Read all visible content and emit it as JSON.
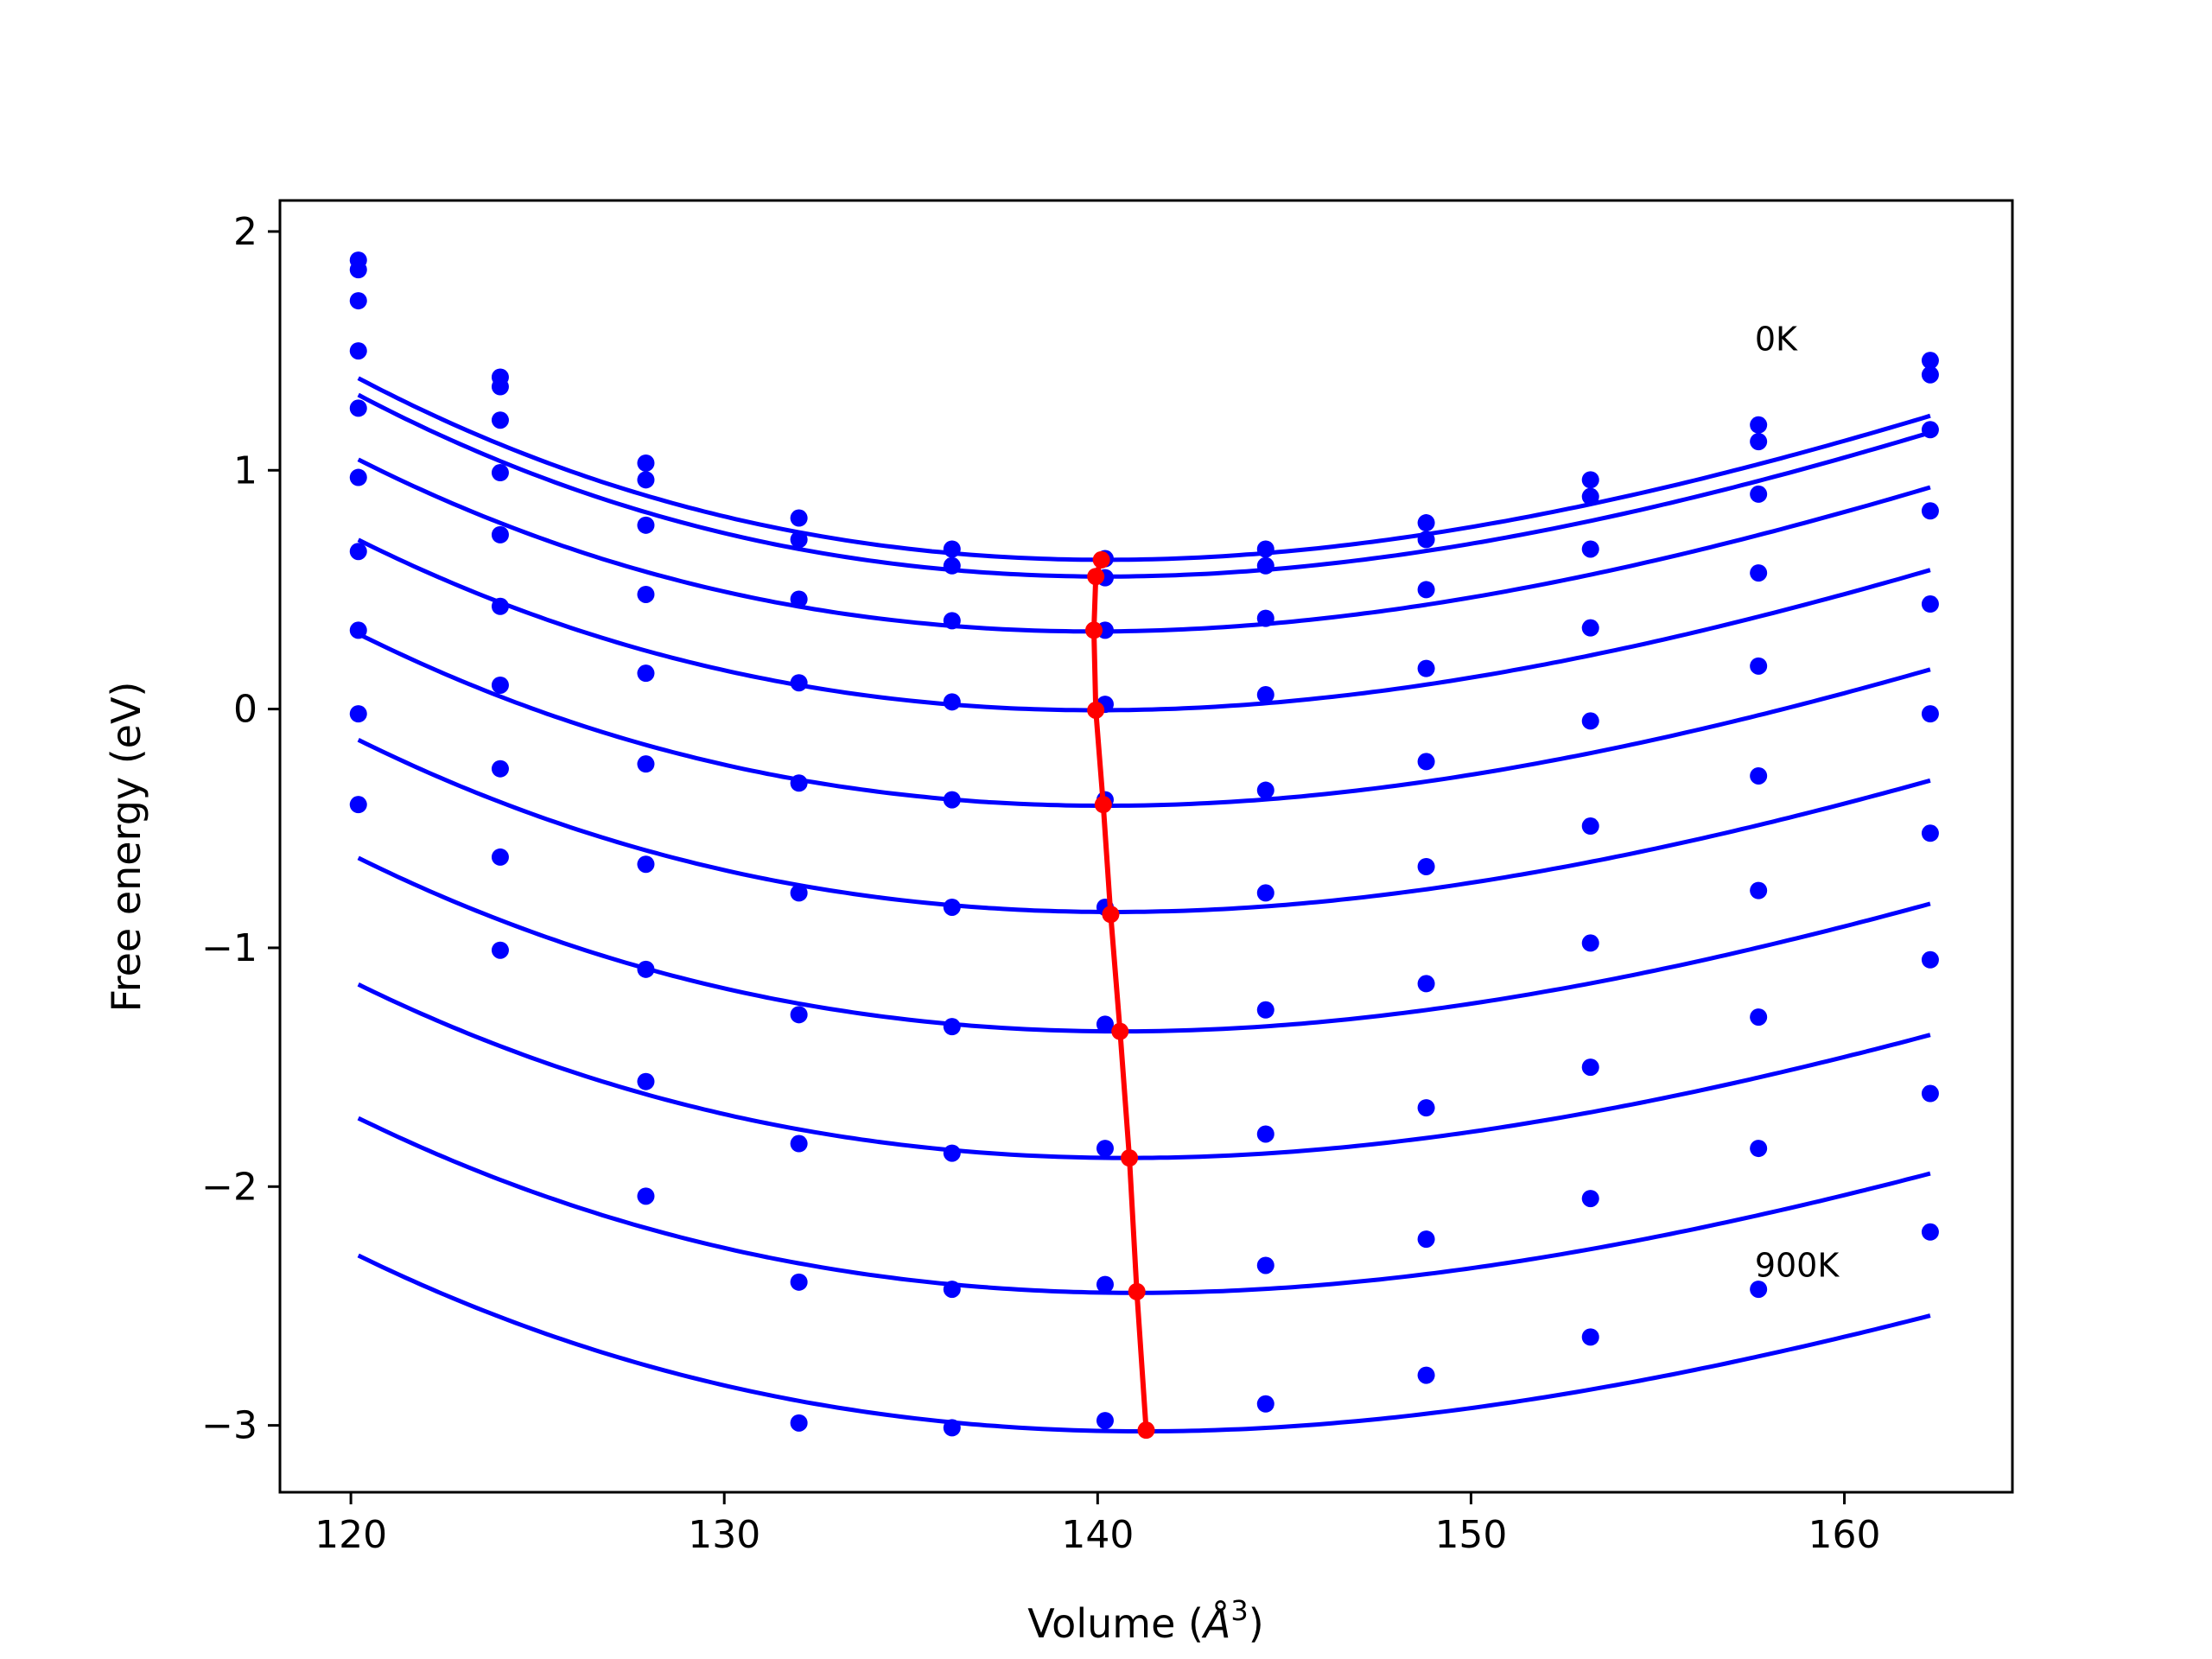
{
  "chart_data": {
    "type": "line",
    "xlabel": "Volume (Å³)",
    "xlabel_parts": {
      "main": "Volume (",
      "symbol": "Å",
      "sup": "3",
      "close": ")"
    },
    "ylabel": "Free energy (eV)",
    "xlim": [
      118.1,
      164.5
    ],
    "ylim": [
      -3.28,
      2.13
    ],
    "xticks": [
      120,
      130,
      140,
      150,
      160
    ],
    "yticks": [
      -3,
      -2,
      -1,
      0,
      1,
      2
    ],
    "xtick_labels": [
      "120",
      "130",
      "140",
      "150",
      "160"
    ],
    "ytick_labels": [
      "−3",
      "−2",
      "−1",
      "0",
      "1",
      "2"
    ],
    "grid": false,
    "legend": "none",
    "colors": {
      "series": "#0000ff",
      "minima": "#ff0000"
    },
    "annotations": [
      {
        "text": "0K",
        "x": 157.6,
        "y": 1.55
      },
      {
        "text": "900K",
        "x": 157.6,
        "y": -2.33
      }
    ],
    "volumes": [
      120.2,
      124.0,
      127.9,
      132.0,
      136.1,
      140.2,
      144.5,
      148.8,
      153.2,
      157.7,
      162.3
    ],
    "series": [
      {
        "fit": {
          "v0": 140.2,
          "f0": 0.625,
          "k": 0.001585
        },
        "points": [
          1.88,
          1.39,
          1.03,
          0.8,
          0.67,
          0.63,
          0.67,
          0.78,
          0.96,
          1.19,
          1.46
        ]
      },
      {
        "fit": {
          "v0": 140.2,
          "f0": 0.555,
          "k": 0.001585
        },
        "points": [
          1.84,
          1.35,
          0.96,
          0.71,
          0.6,
          0.55,
          0.6,
          0.71,
          0.89,
          1.12,
          1.4
        ]
      },
      {
        "fit": {
          "v0": 139.9,
          "f0": 0.325,
          "k": 0.00155
        },
        "points": [
          1.71,
          1.21,
          0.77,
          0.46,
          0.37,
          0.33,
          0.38,
          0.5,
          0.67,
          0.9,
          1.17
        ]
      },
      {
        "fit": {
          "v0": 140.0,
          "f0": -0.005,
          "k": 0.00152
        },
        "points": [
          1.5,
          0.99,
          0.48,
          0.11,
          0.03,
          0.02,
          0.06,
          0.17,
          0.34,
          0.57,
          0.83
        ]
      },
      {
        "fit": {
          "v0": 140.2,
          "f0": -0.405,
          "k": 0.0015
        },
        "points": [
          1.26,
          0.73,
          0.15,
          -0.31,
          -0.38,
          -0.38,
          -0.34,
          -0.22,
          -0.05,
          0.18,
          0.44
        ]
      },
      {
        "fit": {
          "v0": 140.4,
          "f0": -0.85,
          "k": 0.00147
        },
        "points": [
          0.97,
          0.43,
          -0.23,
          -0.77,
          -0.83,
          -0.83,
          -0.77,
          -0.66,
          -0.49,
          -0.28,
          -0.02
        ]
      },
      {
        "fit": {
          "v0": 140.6,
          "f0": -1.35,
          "k": 0.00145
        },
        "points": [
          0.66,
          0.1,
          -0.65,
          -1.28,
          -1.33,
          -1.32,
          -1.26,
          -1.15,
          -0.98,
          -0.76,
          -0.52
        ]
      },
      {
        "fit": {
          "v0": 140.8,
          "f0": -1.88,
          "k": 0.00142
        },
        "points": [
          0.33,
          -0.25,
          -1.09,
          -1.82,
          -1.86,
          -1.84,
          -1.78,
          -1.67,
          -1.5,
          -1.29,
          -1.05
        ]
      },
      {
        "fit": {
          "v0": 141.0,
          "f0": -2.445,
          "k": 0.0014
        },
        "points": [
          -0.02,
          -0.62,
          -1.56,
          -2.4,
          -2.43,
          -2.41,
          -2.33,
          -2.22,
          -2.05,
          -1.84,
          -1.61
        ]
      },
      {
        "fit": {
          "v0": 141.2,
          "f0": -3.025,
          "k": 0.00138
        },
        "points": [
          -0.4,
          -1.01,
          -2.04,
          -2.99,
          -3.01,
          -2.98,
          -2.91,
          -2.79,
          -2.63,
          -2.43,
          -2.19
        ]
      }
    ],
    "minima": {
      "x": [
        140.1,
        139.95,
        139.9,
        139.95,
        140.15,
        140.35,
        140.6,
        140.85,
        141.05,
        141.3
      ],
      "y": [
        0.625,
        0.555,
        0.33,
        -0.005,
        -0.4,
        -0.86,
        -1.35,
        -1.88,
        -2.44,
        -3.02
      ]
    }
  }
}
